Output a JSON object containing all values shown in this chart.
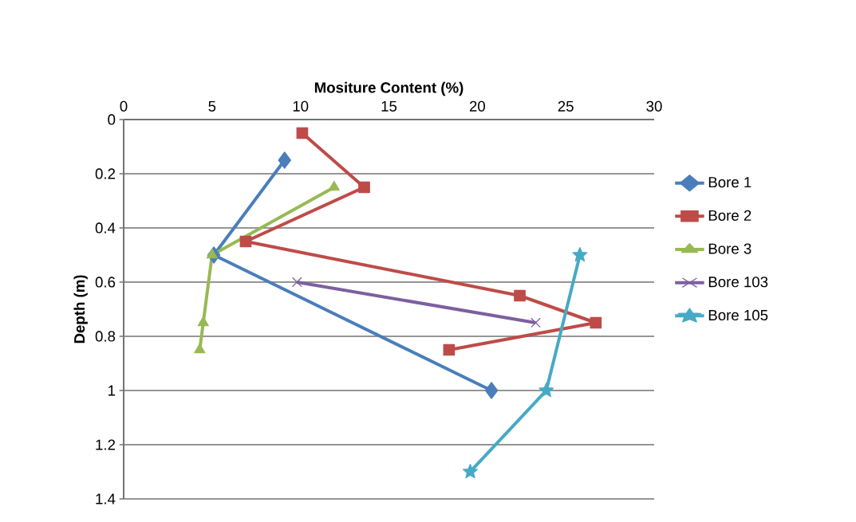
{
  "chart_data": {
    "type": "line",
    "xlabel": "Mositure Content (%)",
    "ylabel": "Depth (m)",
    "xlim": [
      0,
      30
    ],
    "xticks": [
      0,
      5,
      10,
      15,
      20,
      25,
      30
    ],
    "ylim": [
      1.4,
      0
    ],
    "yticks": [
      0,
      0.2,
      0.4,
      0.6,
      0.8,
      1,
      1.2,
      1.4
    ],
    "grid": "y",
    "legend": "right",
    "line_style": "solid",
    "series": [
      {
        "name": "Bore 1",
        "color": "#4a7ebb",
        "marker": "diamond",
        "x": [
          9.1,
          5.1,
          20.8
        ],
        "values": [
          0.15,
          0.5,
          1.0
        ]
      },
      {
        "name": "Bore 2",
        "color": "#be4b48",
        "marker": "square",
        "x": [
          10.1,
          13.6,
          6.9,
          22.4,
          26.7,
          18.4
        ],
        "values": [
          0.05,
          0.25,
          0.45,
          0.65,
          0.75,
          0.85
        ]
      },
      {
        "name": "Bore 3",
        "color": "#98b954",
        "marker": "triangle",
        "x": [
          11.9,
          5.0,
          4.5,
          4.3
        ],
        "values": [
          0.25,
          0.5,
          0.75,
          0.85
        ]
      },
      {
        "name": "Bore 103",
        "color": "#7d5fa0",
        "marker": "cross",
        "x": [
          9.8,
          23.3
        ],
        "values": [
          0.6,
          0.75
        ]
      },
      {
        "name": "Bore 105",
        "color": "#46aac5",
        "marker": "star",
        "x": [
          25.8,
          23.9,
          19.6
        ],
        "values": [
          0.5,
          1.0,
          1.3
        ]
      }
    ]
  }
}
